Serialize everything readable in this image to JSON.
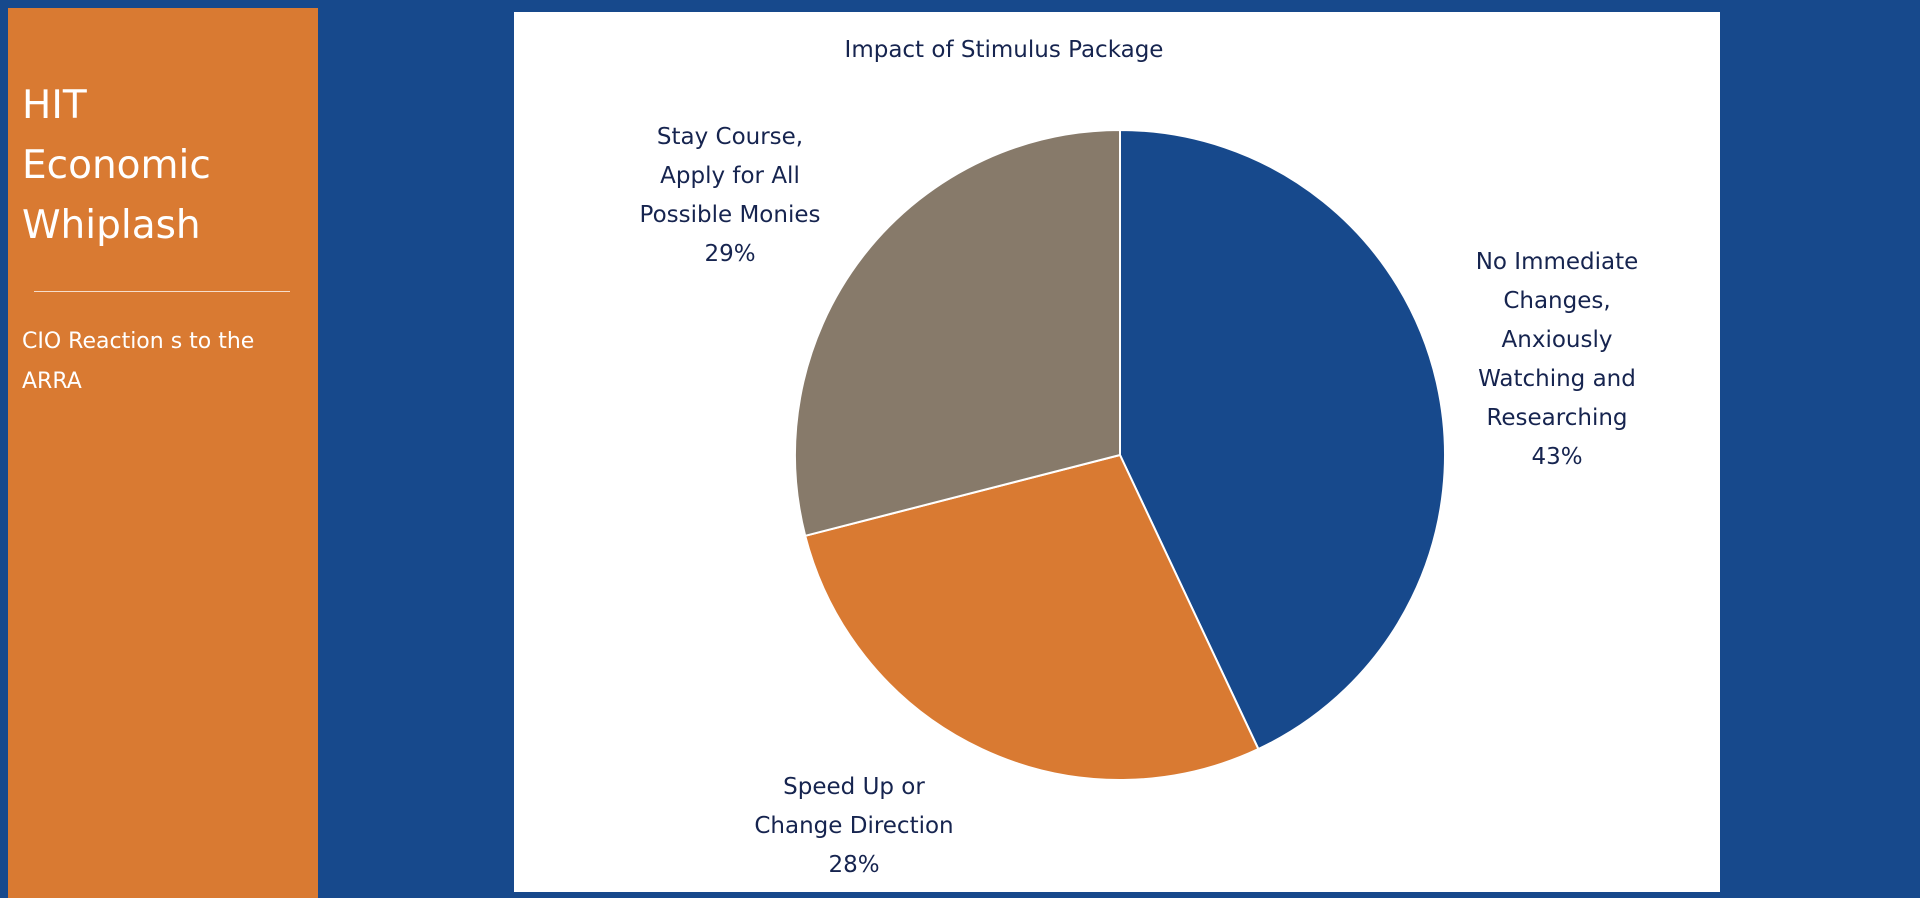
{
  "sidebar": {
    "title_lines": [
      "HIT",
      "Economic",
      "Whiplash"
    ],
    "subtitle_lines": [
      "CIO Reaction s to the",
      "ARRA"
    ]
  },
  "colors": {
    "frame_blue": "#17498c",
    "sidebar_orange": "#d97a32",
    "label_text": "#16244f"
  },
  "chart_data": {
    "type": "pie",
    "title": "Impact of Stimulus Package",
    "start_angle_deg": 0,
    "direction": "clockwise",
    "slices": [
      {
        "label_lines": [
          "No Immediate",
          "Changes,",
          "Anxiously",
          "Watching and",
          "Researching"
        ],
        "percent_label": "43%",
        "value": 43,
        "color": "#17498c"
      },
      {
        "label_lines": [
          "Speed Up or",
          "Change Direction"
        ],
        "percent_label": "28%",
        "value": 28,
        "color": "#d97a32"
      },
      {
        "label_lines": [
          "Stay Course,",
          "Apply for All",
          "Possible Monies"
        ],
        "percent_label": "29%",
        "value": 29,
        "color": "#877a6a"
      }
    ]
  }
}
